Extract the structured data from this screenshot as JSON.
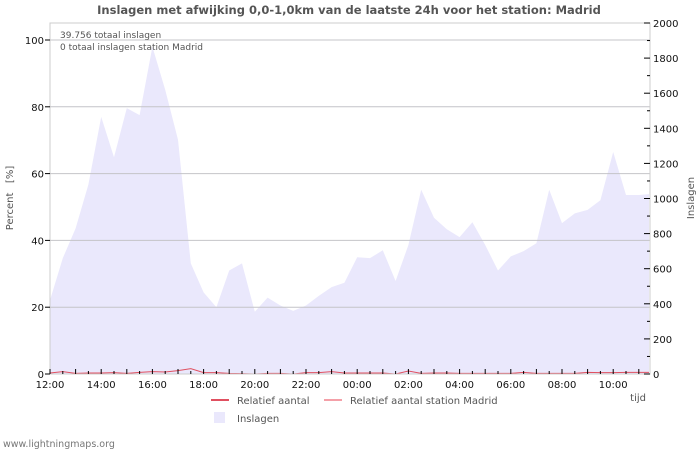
{
  "chart_data": {
    "type": "area",
    "title": "Inslagen met afwijking 0,0-1,0km van de laatste 24h voor het station: Madrid",
    "annotations": [
      "39.756 totaal inslagen",
      "0 totaal inslagen station Madrid"
    ],
    "xlabel": "tijd",
    "ylabel": "Percent   [%]",
    "y2label": "Inslagen",
    "x_ticks": [
      "12:00",
      "14:00",
      "16:00",
      "18:00",
      "20:00",
      "22:00",
      "00:00",
      "02:00",
      "04:00",
      "06:00",
      "08:00",
      "10:00"
    ],
    "y_ticks": [
      0,
      20,
      40,
      60,
      80,
      100
    ],
    "y2_ticks": [
      0,
      200,
      400,
      600,
      800,
      1000,
      1200,
      1400,
      1600,
      1800,
      2000
    ],
    "ylim": [
      0,
      105
    ],
    "y2lim": [
      0,
      2000
    ],
    "grid": true,
    "x_interval": "30 min",
    "series": [
      {
        "name": "Inslagen",
        "axis": "right",
        "color": "#eae8fc",
        "type": "area",
        "values": [
          420,
          660,
          830,
          1080,
          1465,
          1235,
          1515,
          1475,
          1865,
          1620,
          1335,
          630,
          465,
          380,
          590,
          630,
          355,
          435,
          390,
          360,
          390,
          445,
          495,
          520,
          665,
          660,
          705,
          530,
          735,
          1050,
          890,
          825,
          780,
          865,
          735,
          590,
          670,
          700,
          745,
          1050,
          860,
          915,
          935,
          990,
          1265,
          1020,
          1020,
          1025
        ]
      },
      {
        "name": "Relatief aantal",
        "axis": "left",
        "color": "#e05060",
        "type": "line",
        "values": [
          0.3,
          0.7,
          0.2,
          0.3,
          0.3,
          0.4,
          0.2,
          0.5,
          0.7,
          0.6,
          1.0,
          1.6,
          0.4,
          0.4,
          0.2,
          0.1,
          0.0,
          0.2,
          0.2,
          0.0,
          0.4,
          0.4,
          0.7,
          0.3,
          0.3,
          0.3,
          0.3,
          0.0,
          0.9,
          0.2,
          0.3,
          0.3,
          0.2,
          0.2,
          0.2,
          0.2,
          0.2,
          0.5,
          0.2,
          0.2,
          0.2,
          0.2,
          0.5,
          0.4,
          0.4,
          0.5,
          0.5,
          0.5
        ]
      },
      {
        "name": "Relatief aantal station Madrid",
        "axis": "left",
        "color": "#f4a0a8",
        "type": "line",
        "values": [
          0,
          0,
          0,
          0,
          0,
          0,
          0,
          0,
          0,
          0,
          0,
          0,
          0,
          0,
          0,
          0,
          0,
          0,
          0,
          0,
          0,
          0,
          0,
          0,
          0,
          0,
          0,
          0,
          0,
          0,
          0,
          0,
          0,
          0,
          0,
          0,
          0,
          0,
          0,
          0,
          0,
          0,
          0,
          0,
          0,
          0,
          0,
          0
        ]
      }
    ],
    "legend": [
      "Relatief aantal",
      "Relatief aantal station Madrid",
      "Inslagen"
    ],
    "legend_position": "bottom"
  },
  "footer": "www.lightningmaps.org"
}
